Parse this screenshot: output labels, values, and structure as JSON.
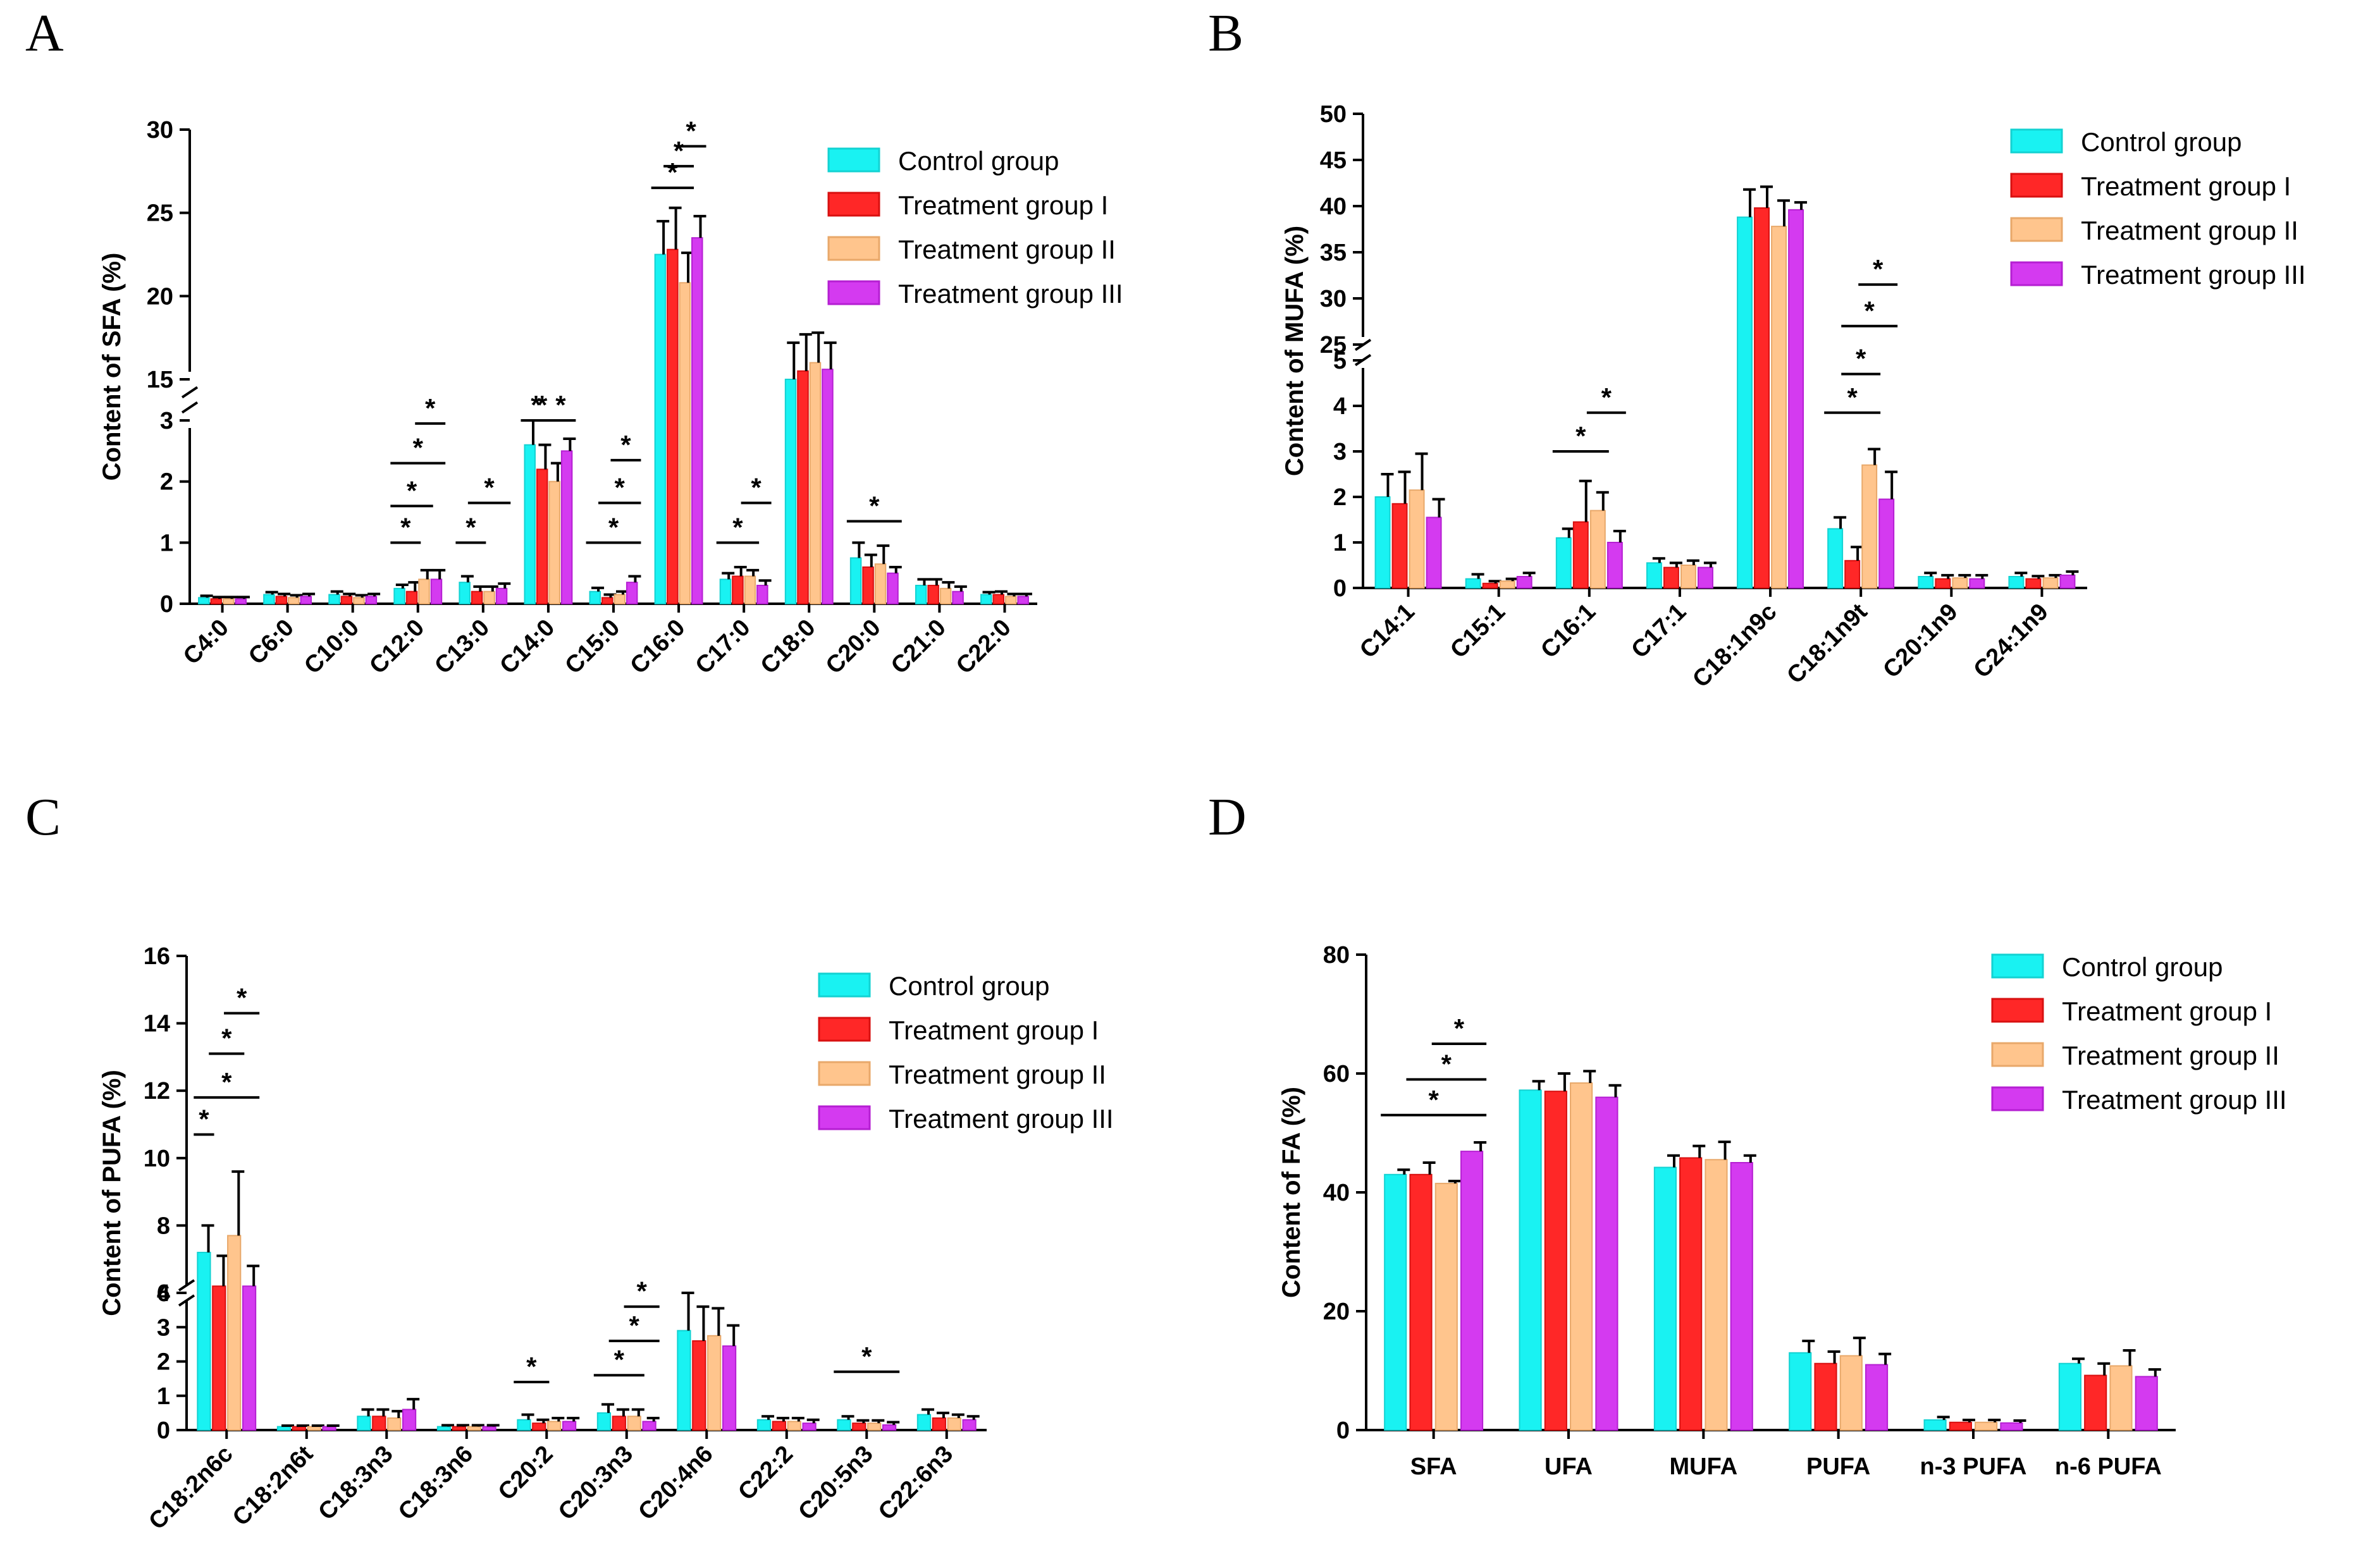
{
  "legend": {
    "labels": [
      "Control group",
      "Treatment group I",
      "Treatment group II",
      "Treatment group III"
    ],
    "colors": [
      "#19f2f2",
      "#ff2727",
      "#ffc58d",
      "#d43af0"
    ]
  },
  "chart_data": [
    {
      "panel": "A",
      "type": "bar",
      "title": "",
      "ylabel": "Content of SFA (%)",
      "xlabel": "",
      "ylim": [
        0,
        30
      ],
      "y_break": {
        "lower": [
          0,
          3
        ],
        "upper": [
          15,
          30
        ]
      },
      "yticks_lower": [
        0,
        1,
        2,
        3
      ],
      "yticks_upper": [
        15,
        20,
        25,
        30
      ],
      "legend_position": "top-right",
      "categories": [
        "C4:0",
        "C6:0",
        "C10:0",
        "C12:0",
        "C13:0",
        "C14:0",
        "C15:0",
        "C16:0",
        "C17:0",
        "C18:0",
        "C20:0",
        "C21:0",
        "C22:0"
      ],
      "series": [
        {
          "name": "Control group",
          "values": [
            0.1,
            0.15,
            0.15,
            0.25,
            0.35,
            2.6,
            0.2,
            22.5,
            0.4,
            15.0,
            0.75,
            0.3,
            0.15
          ],
          "errors": [
            0.03,
            0.04,
            0.05,
            0.06,
            0.1,
            0.4,
            0.06,
            2.0,
            0.1,
            2.2,
            0.25,
            0.1,
            0.04
          ]
        },
        {
          "name": "Treatment group I",
          "values": [
            0.08,
            0.12,
            0.12,
            0.2,
            0.2,
            2.2,
            0.1,
            22.8,
            0.45,
            15.5,
            0.6,
            0.3,
            0.15
          ],
          "errors": [
            0.03,
            0.04,
            0.04,
            0.15,
            0.08,
            0.4,
            0.05,
            2.5,
            0.15,
            2.2,
            0.2,
            0.1,
            0.05
          ]
        },
        {
          "name": "Treatment group II",
          "values": [
            0.08,
            0.1,
            0.1,
            0.4,
            0.2,
            2.0,
            0.15,
            20.8,
            0.45,
            16.0,
            0.65,
            0.25,
            0.12
          ],
          "errors": [
            0.03,
            0.04,
            0.04,
            0.15,
            0.08,
            0.3,
            0.05,
            1.8,
            0.1,
            1.8,
            0.3,
            0.1,
            0.04
          ]
        },
        {
          "name": "Treatment group III",
          "values": [
            0.08,
            0.12,
            0.12,
            0.4,
            0.25,
            2.5,
            0.35,
            23.5,
            0.3,
            15.6,
            0.5,
            0.2,
            0.12
          ],
          "errors": [
            0.03,
            0.04,
            0.04,
            0.15,
            0.08,
            0.2,
            0.1,
            1.3,
            0.08,
            1.6,
            0.1,
            0.08,
            0.04
          ]
        }
      ],
      "annotations": [
        {
          "text": "*",
          "category_index": 3,
          "from_group": 0,
          "to_group": 1,
          "y": 1.0
        },
        {
          "text": "*",
          "category_index": 3,
          "from_group": 0,
          "to_group": 2,
          "y": 1.6
        },
        {
          "text": "*",
          "category_index": 3,
          "from_group": 0,
          "to_group": 3,
          "y": 2.3
        },
        {
          "text": "*",
          "category_index": 3,
          "from_group": 2,
          "to_group": 3,
          "y": 2.95
        },
        {
          "text": "*",
          "category_index": 4,
          "from_group": 0,
          "to_group": 1,
          "y": 1.0
        },
        {
          "text": "*",
          "category_index": 4,
          "from_group": 1,
          "to_group": 3,
          "y": 1.65
        },
        {
          "text": "*",
          "category_index": 5,
          "from_group": 0,
          "to_group": 1,
          "y": 3.6
        },
        {
          "text": "*",
          "category_index": 5,
          "from_group": 0,
          "to_group": 2,
          "y": 4.2
        },
        {
          "text": "*",
          "category_index": 5,
          "from_group": 2,
          "to_group": 3,
          "y": 5.0
        },
        {
          "text": "*",
          "category_index": 6,
          "from_group": 0,
          "to_group": 3,
          "y": 1.0
        },
        {
          "text": "*",
          "category_index": 6,
          "from_group": 1,
          "to_group": 3,
          "y": 1.65
        },
        {
          "text": "*",
          "category_index": 6,
          "from_group": 2,
          "to_group": 3,
          "y": 2.35
        },
        {
          "text": "*",
          "category_index": 7,
          "from_group": 0,
          "to_group": 2,
          "y": 26.5
        },
        {
          "text": "*",
          "category_index": 7,
          "from_group": 1,
          "to_group": 2,
          "y": 27.8
        },
        {
          "text": "*",
          "category_index": 7,
          "from_group": 2,
          "to_group": 3,
          "y": 29.0
        },
        {
          "text": "*",
          "category_index": 8,
          "from_group": 0,
          "to_group": 2,
          "y": 1.0
        },
        {
          "text": "*",
          "category_index": 8,
          "from_group": 2,
          "to_group": 3,
          "y": 1.65
        },
        {
          "text": "*",
          "category_index": 10,
          "from_group": 0,
          "to_group": 3,
          "y": 1.35
        }
      ]
    },
    {
      "panel": "B",
      "type": "bar",
      "title": "",
      "ylabel": "Content of MUFA (%)",
      "xlabel": "",
      "ylim": [
        0,
        50
      ],
      "y_break": {
        "lower": [
          0,
          5
        ],
        "upper": [
          25,
          50
        ]
      },
      "yticks_lower": [
        0,
        1,
        2,
        3,
        4,
        5
      ],
      "yticks_upper": [
        25,
        30,
        35,
        40,
        45,
        50
      ],
      "legend_position": "top-right",
      "categories": [
        "C14:1",
        "C15:1",
        "C16:1",
        "C17:1",
        "C18:1n9c",
        "C18:1n9t",
        "C20:1n9",
        "C24:1n9"
      ],
      "series": [
        {
          "name": "Control group",
          "values": [
            2.0,
            0.2,
            1.1,
            0.55,
            38.8,
            1.3,
            0.25,
            0.25
          ],
          "errors": [
            0.5,
            0.1,
            0.2,
            0.1,
            3.0,
            0.25,
            0.08,
            0.08
          ]
        },
        {
          "name": "Treatment group I",
          "values": [
            1.85,
            0.1,
            1.45,
            0.45,
            39.8,
            0.6,
            0.2,
            0.2
          ],
          "errors": [
            0.7,
            0.05,
            0.9,
            0.1,
            2.3,
            0.3,
            0.08,
            0.06
          ]
        },
        {
          "name": "Treatment group II",
          "values": [
            2.15,
            0.15,
            1.7,
            0.5,
            37.8,
            2.7,
            0.22,
            0.22
          ],
          "errors": [
            0.8,
            0.05,
            0.4,
            0.1,
            2.8,
            0.35,
            0.06,
            0.06
          ]
        },
        {
          "name": "Treatment group III",
          "values": [
            1.55,
            0.25,
            1.0,
            0.45,
            39.6,
            1.95,
            0.2,
            0.28
          ],
          "errors": [
            0.4,
            0.08,
            0.25,
            0.1,
            0.8,
            0.6,
            0.08,
            0.08
          ]
        }
      ],
      "annotations": [
        {
          "text": "*",
          "category_index": 2,
          "from_group": 0,
          "to_group": 2,
          "y": 3.0
        },
        {
          "text": "*",
          "category_index": 2,
          "from_group": 2,
          "to_group": 3,
          "y": 3.85
        },
        {
          "text": "*",
          "category_index": 5,
          "from_group": 0,
          "to_group": 2,
          "y": 3.85
        },
        {
          "text": "*",
          "category_index": 5,
          "from_group": 1,
          "to_group": 2,
          "y": 4.7
        },
        {
          "text": "*",
          "category_index": 5,
          "from_group": 1,
          "to_group": 3,
          "y": 27.0
        },
        {
          "text": "*",
          "category_index": 5,
          "from_group": 2,
          "to_group": 3,
          "y": 31.5
        }
      ]
    },
    {
      "panel": "C",
      "type": "bar",
      "title": "",
      "ylabel": "Content of PUFA (%)",
      "xlabel": "",
      "ylim": [
        0,
        16
      ],
      "y_break": {
        "lower": [
          0,
          4
        ],
        "upper": [
          6,
          16
        ]
      },
      "yticks_lower": [
        0,
        1,
        2,
        3,
        4
      ],
      "yticks_upper": [
        6,
        8,
        10,
        12,
        14,
        16
      ],
      "legend_position": "top-right",
      "categories": [
        "C18:2n6c",
        "C18:2n6t",
        "C18:3n3",
        "C18:3n6",
        "C20:2",
        "C20:3n3",
        "C20:4n6",
        "C22:2",
        "C20:5n3",
        "C22:6n3"
      ],
      "series": [
        {
          "name": "Control group",
          "values": [
            7.2,
            0.1,
            0.4,
            0.1,
            0.3,
            0.5,
            2.9,
            0.3,
            0.3,
            0.45
          ],
          "errors": [
            0.8,
            0.03,
            0.2,
            0.04,
            0.15,
            0.25,
            1.1,
            0.1,
            0.1,
            0.15
          ]
        },
        {
          "name": "Treatment group I",
          "values": [
            6.2,
            0.1,
            0.4,
            0.1,
            0.2,
            0.4,
            2.6,
            0.25,
            0.2,
            0.35
          ],
          "errors": [
            0.9,
            0.03,
            0.2,
            0.04,
            0.1,
            0.2,
            1.0,
            0.1,
            0.08,
            0.15
          ]
        },
        {
          "name": "Treatment group II",
          "values": [
            7.7,
            0.1,
            0.35,
            0.1,
            0.25,
            0.4,
            2.75,
            0.25,
            0.2,
            0.35
          ],
          "errors": [
            1.9,
            0.03,
            0.2,
            0.04,
            0.1,
            0.2,
            0.8,
            0.1,
            0.08,
            0.1
          ]
        },
        {
          "name": "Treatment group III",
          "values": [
            6.2,
            0.1,
            0.6,
            0.1,
            0.25,
            0.25,
            2.45,
            0.2,
            0.15,
            0.3
          ],
          "errors": [
            0.6,
            0.03,
            0.3,
            0.04,
            0.1,
            0.1,
            0.6,
            0.1,
            0.08,
            0.1
          ]
        }
      ],
      "annotations": [
        {
          "text": "*",
          "category_index": 0,
          "from_group": 0,
          "to_group": 0,
          "y": 10.7
        },
        {
          "text": "*",
          "category_index": 0,
          "from_group": 0,
          "to_group": 3,
          "y": 11.8
        },
        {
          "text": "*",
          "category_index": 0,
          "from_group": 1,
          "to_group": 2,
          "y": 13.1
        },
        {
          "text": "*",
          "category_index": 0,
          "from_group": 2,
          "to_group": 3,
          "y": 14.3
        },
        {
          "text": "*",
          "category_index": 4,
          "from_group": 0,
          "to_group": 1,
          "y": 1.4
        },
        {
          "text": "*",
          "category_index": 5,
          "from_group": 0,
          "to_group": 2,
          "y": 1.6
        },
        {
          "text": "*",
          "category_index": 5,
          "from_group": 1,
          "to_group": 3,
          "y": 2.6
        },
        {
          "text": "*",
          "category_index": 5,
          "from_group": 2,
          "to_group": 3,
          "y": 3.6
        },
        {
          "text": "*",
          "category_index": 8,
          "from_group": 0,
          "to_group": 3,
          "y": 1.7
        }
      ]
    },
    {
      "panel": "D",
      "type": "bar",
      "title": "",
      "ylabel": "Content of FA (%)",
      "xlabel": "",
      "ylim": [
        0,
        80
      ],
      "yticks": [
        0,
        20,
        40,
        60,
        80
      ],
      "legend_position": "top-right",
      "categories": [
        "SFA",
        "UFA",
        "MUFA",
        "PUFA",
        "n-3 PUFA",
        "n-6 PUFA"
      ],
      "series": [
        {
          "name": "Control group",
          "values": [
            43.0,
            57.2,
            44.2,
            13.0,
            1.7,
            11.2
          ],
          "errors": [
            0.8,
            1.5,
            2.0,
            2.0,
            0.5,
            0.8
          ]
        },
        {
          "name": "Treatment group I",
          "values": [
            43.0,
            57.0,
            45.8,
            11.2,
            1.3,
            9.2
          ],
          "errors": [
            2.0,
            3.0,
            2.0,
            2.0,
            0.4,
            2.0
          ]
        },
        {
          "name": "Treatment group II",
          "values": [
            41.5,
            58.4,
            45.5,
            12.5,
            1.3,
            10.8
          ],
          "errors": [
            0.4,
            2.0,
            3.0,
            3.0,
            0.4,
            2.6
          ]
        },
        {
          "name": "Treatment group III",
          "values": [
            46.9,
            56.0,
            45.0,
            11.0,
            1.2,
            9.0
          ],
          "errors": [
            1.5,
            2.0,
            1.2,
            1.8,
            0.4,
            1.2
          ]
        }
      ],
      "annotations": [
        {
          "text": "*",
          "category_index": 0,
          "from_group": 0,
          "to_group": 3,
          "y": 53.0
        },
        {
          "text": "*",
          "category_index": 0,
          "from_group": 1,
          "to_group": 3,
          "y": 59.0
        },
        {
          "text": "*",
          "category_index": 0,
          "from_group": 2,
          "to_group": 3,
          "y": 65.0
        }
      ]
    }
  ]
}
